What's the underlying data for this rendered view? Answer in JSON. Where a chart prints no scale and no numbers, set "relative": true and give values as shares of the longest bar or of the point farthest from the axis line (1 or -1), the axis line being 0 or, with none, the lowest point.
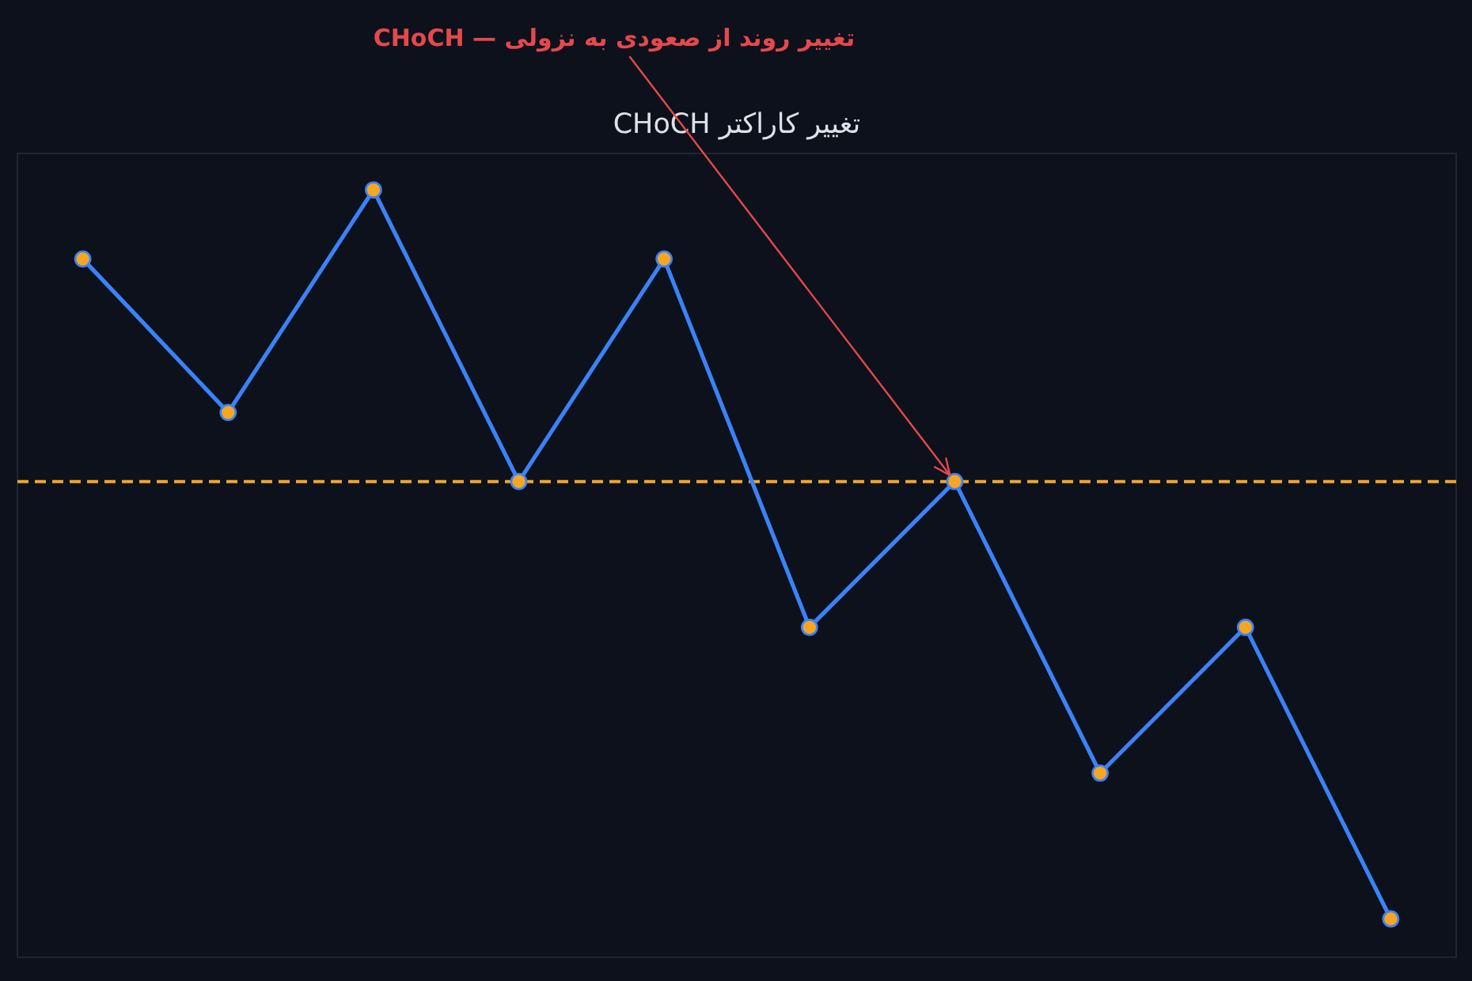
{
  "chart_data": {
    "type": "line",
    "title": "تغییر کاراکتر CHoCH",
    "categories": [
      null,
      null,
      null,
      null,
      null,
      null,
      null,
      null,
      null,
      null
    ],
    "relative": true,
    "tick_labels": false,
    "marker": "circle",
    "line_style": "solid",
    "series": [
      {
        "color": "#3b82f6",
        "values": [
          0.91,
          0.71,
          1.0,
          0.62,
          0.91,
          0.43,
          0.62,
          0.24,
          0.43,
          0.05
        ]
      }
    ],
    "ref_lines": [
      {
        "axis": "y",
        "value": 0.62,
        "color": "#f5a623",
        "line_style": "dashed"
      }
    ],
    "annotations": [
      "CHoCH — تغییر روند از صعودی به نزولی"
    ]
  }
}
